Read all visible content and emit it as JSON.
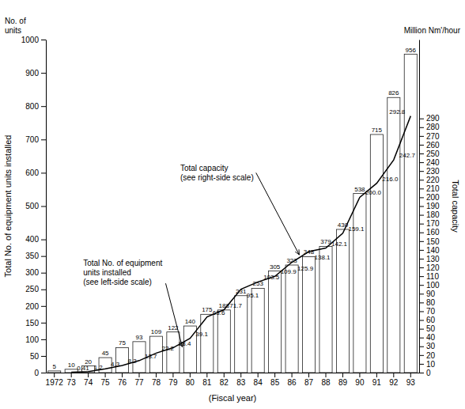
{
  "chart_data": {
    "type": "bar",
    "categories": [
      "1972",
      "73",
      "74",
      "75",
      "76",
      "77",
      "78",
      "79",
      "80",
      "81",
      "82",
      "83",
      "84",
      "85",
      "86",
      "87",
      "88",
      "89",
      "90",
      "91",
      "92",
      "93"
    ],
    "x_label": "(Fiscal year)",
    "y_label": "Total No. of equipment units installed",
    "y2_label": "Total capacity",
    "ylim": [
      0,
      1000
    ],
    "yticks": [
      0,
      50,
      100,
      150,
      200,
      250,
      300,
      350,
      400,
      500,
      600,
      700,
      800,
      900,
      1000
    ],
    "y2lim": [
      0,
      380
    ],
    "y2ticks": [
      0,
      10,
      20,
      30,
      40,
      50,
      60,
      70,
      80,
      90,
      100,
      110,
      120,
      130,
      140,
      150,
      160,
      170,
      180,
      190,
      200,
      210,
      220,
      230,
      240,
      250,
      260,
      270,
      280,
      290
    ],
    "series": [
      {
        "type": "bar",
        "color": "white",
        "values": [
          5,
          10,
          20,
          45,
          75,
          93,
          109,
          122,
          140,
          175,
          188,
          231,
          253,
          305,
          323,
          348,
          379,
          430,
          538,
          715,
          826,
          956
        ]
      },
      {
        "type": "line",
        "axis": "y2",
        "color": "black",
        "values": [
          null,
          0.41,
          1.2,
          4.3,
          8.2,
          13.7,
          22.2,
          28.4,
          39.1,
          63.6,
          71.7,
          95.1,
          103.5,
          109.9,
          125.9,
          138.1,
          142.1,
          159.1,
          200.0,
          216.0,
          242.7,
          292.8
        ],
        "value_labels": [
          null,
          "0.41",
          "1.2",
          "4.3",
          "8.2",
          "13.7",
          "22.2",
          "28.4",
          "39.1",
          "63.6",
          "71.7",
          "95.1",
          "103.5",
          "109.9",
          "125.9",
          "138.1",
          "142.1",
          "159.1",
          "200.0",
          "216.0",
          "242.7",
          "292.8"
        ]
      }
    ],
    "data_labels": true,
    "grid": false,
    "annotations": [
      "No. of\nunits",
      "Million Nm'/hour",
      "Total capacity\n(see right-side scale)",
      "Total No. of equipment\nunits installed\n(see left-side scale)"
    ]
  }
}
